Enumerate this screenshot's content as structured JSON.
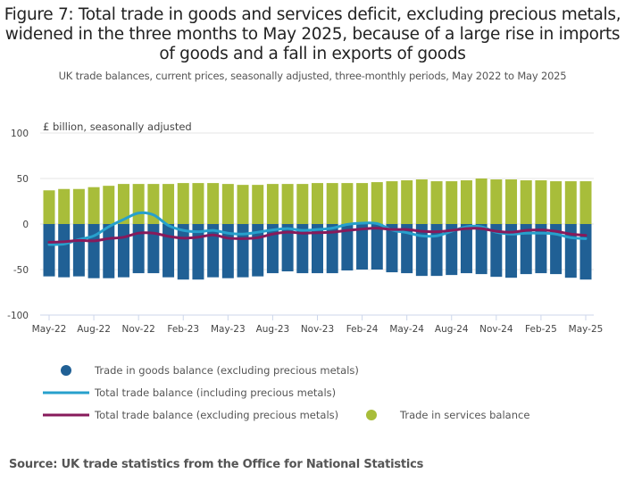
{
  "chart_data": {
    "type": "bar",
    "stacked": true,
    "title": "Figure 7: Total trade in goods and services deficit, excluding precious metals, widened in the three months to May 2025, because of a large rise in imports of goods and a fall in exports of goods",
    "subtitle": "UK trade balances, current prices, seasonally adjusted, three-monthly periods, May 2022 to May 2025",
    "ylabel": "£ billion, seasonally adjusted",
    "xlabel": "",
    "ylim": [
      -100,
      100
    ],
    "yticks": [
      100,
      50,
      0,
      -50,
      -100
    ],
    "grid": true,
    "x": [
      "May-22",
      "Jun-22",
      "Jul-22",
      "Aug-22",
      "Sep-22",
      "Oct-22",
      "Nov-22",
      "Dec-22",
      "Jan-23",
      "Feb-23",
      "Mar-23",
      "Apr-23",
      "May-23",
      "Jun-23",
      "Jul-23",
      "Aug-23",
      "Sep-23",
      "Oct-23",
      "Nov-23",
      "Dec-23",
      "Jan-24",
      "Feb-24",
      "Mar-24",
      "Apr-24",
      "May-24",
      "Jun-24",
      "Jul-24",
      "Aug-24",
      "Sep-24",
      "Oct-24",
      "Nov-24",
      "Dec-24",
      "Jan-25",
      "Feb-25",
      "Mar-25",
      "Apr-25",
      "May-25"
    ],
    "xticks": [
      "May-22",
      "Aug-22",
      "Nov-22",
      "Feb-23",
      "May-23",
      "Aug-23",
      "Nov-23",
      "Feb-24",
      "May-24",
      "Aug-24",
      "Nov-24",
      "Feb-25",
      "May-25"
    ],
    "series": [
      {
        "name": "Trade in goods balance (excluding precious metals)",
        "kind": "bar",
        "color": "#206095",
        "values": [
          -57.5,
          -58.5,
          -57.5,
          -59.5,
          -59.5,
          -58.5,
          -54,
          -54,
          -58.5,
          -61,
          -61,
          -58.5,
          -59.5,
          -58.5,
          -57.5,
          -54,
          -52,
          -54,
          -54,
          -54,
          -51,
          -50,
          -50,
          -53,
          -54,
          -57,
          -57,
          -56,
          -54,
          -55,
          -58,
          -59,
          -55,
          -54,
          -55,
          -59,
          -61
        ]
      },
      {
        "name": "Trade in services balance",
        "kind": "bar",
        "color": "#a8bd3a",
        "values": [
          37,
          38.5,
          38.5,
          40.5,
          42,
          44,
          44,
          44,
          44,
          45,
          45,
          45,
          44,
          43,
          43,
          44,
          44,
          44,
          45,
          45,
          45,
          45,
          46,
          47,
          48,
          49,
          47,
          47,
          48,
          50,
          49,
          49,
          48,
          48,
          47,
          47,
          47
        ]
      },
      {
        "name": "Total trade balance (including precious metals)",
        "kind": "line",
        "color": "#27a0cc",
        "values": [
          -22.5,
          -22,
          -17,
          -13,
          -3,
          5,
          12,
          10,
          -1.5,
          -7,
          -8.5,
          -7,
          -10,
          -11,
          -9,
          -6.5,
          -5,
          -7,
          -6,
          -4.5,
          -0.5,
          1,
          0.5,
          -6.5,
          -9.5,
          -13,
          -13,
          -8,
          -3,
          -3,
          -9,
          -11,
          -10,
          -10,
          -11,
          -15,
          -16
        ]
      },
      {
        "name": "Total trade balance (excluding precious metals)",
        "kind": "line",
        "color": "#871a5b",
        "values": [
          -20,
          -19.5,
          -18,
          -18.5,
          -16,
          -14.5,
          -10,
          -10,
          -13.5,
          -15.5,
          -14.5,
          -12,
          -15.5,
          -16,
          -15,
          -11,
          -9,
          -10,
          -9.5,
          -9,
          -7,
          -5.5,
          -4.5,
          -6,
          -6,
          -8,
          -8.5,
          -7,
          -5,
          -5,
          -8,
          -9,
          -7,
          -6.5,
          -8,
          -11,
          -12.5
        ]
      }
    ],
    "legend": {
      "placement": "bottom",
      "items": [
        {
          "label": "Trade in goods balance (excluding precious metals)",
          "symbol": "circle",
          "color": "#206095"
        },
        {
          "label": "Total trade balance (including precious metals)",
          "symbol": "line",
          "color": "#27a0cc"
        },
        {
          "label": "Total trade balance (excluding precious metals)",
          "symbol": "line",
          "color": "#871a5b"
        },
        {
          "label": "Trade in services balance",
          "symbol": "circle",
          "color": "#a8bd3a"
        }
      ]
    }
  },
  "source": "Source: UK trade statistics from the Office for National Statistics"
}
